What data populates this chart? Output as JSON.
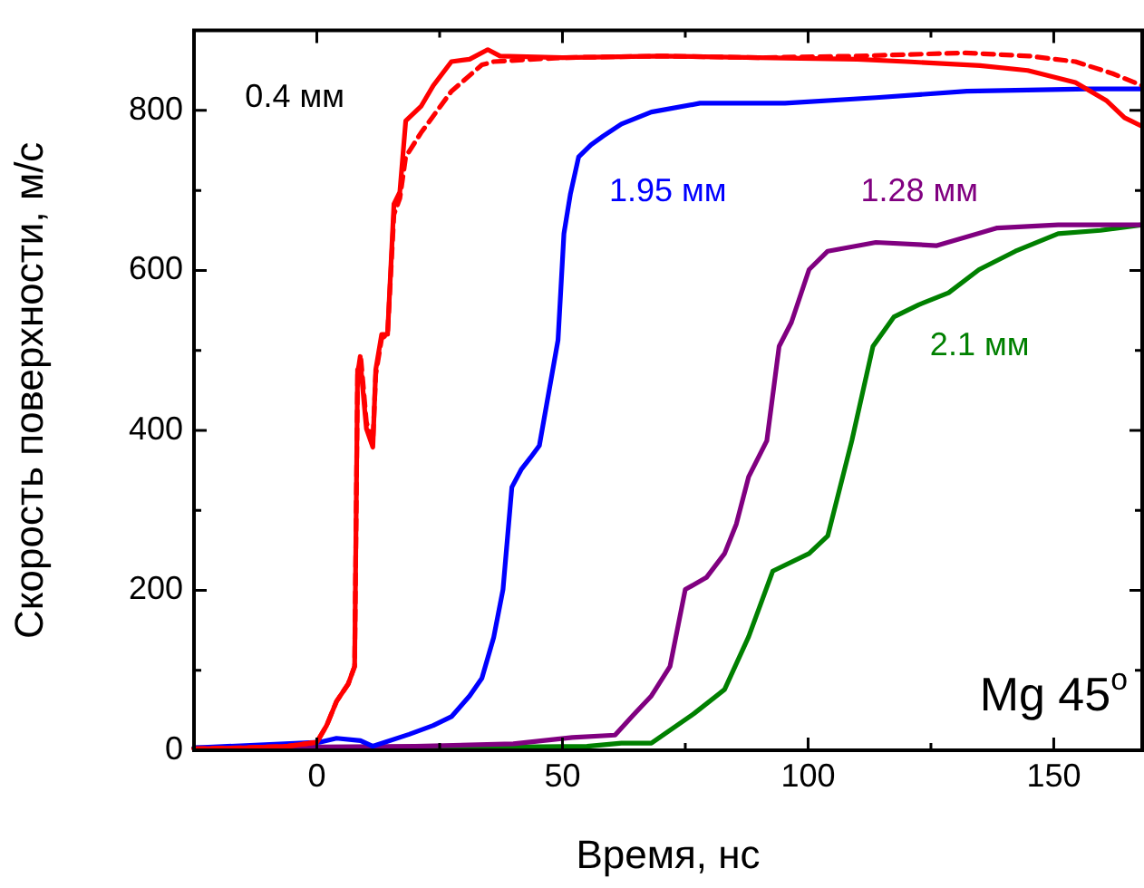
{
  "chart_data": {
    "type": "line",
    "xlabel": "Время, нс",
    "ylabel": "Скорость поверхности, м/с",
    "xlim": [
      -25,
      168
    ],
    "xticks": [
      0,
      50,
      100,
      150
    ],
    "ylim": [
      0,
      900
    ],
    "yticks": [
      0,
      200,
      400,
      600,
      800
    ],
    "grid": false,
    "legend": false,
    "marker": "none",
    "annotations": [
      "Mg 45$^{o}$"
    ],
    "series": [
      {
        "name": "0.4 мм",
        "color": "#ff0000",
        "line_style": "solid",
        "x": [
          -25,
          -15,
          -6,
          0,
          2,
          4,
          6.4,
          7.7,
          8.3,
          8.9,
          10.1,
          11.4,
          12,
          13.2,
          14.4,
          15.7,
          16.9,
          18.1,
          21.2,
          23.7,
          27.4,
          31.1,
          34.8,
          37.3,
          50,
          70,
          90,
          110,
          120,
          135,
          144.7,
          154.4,
          160.8,
          164.4,
          168
        ],
        "values": [
          2,
          3,
          5,
          10,
          31,
          61,
          83,
          105,
          476,
          483,
          402,
          379,
          476,
          520,
          520,
          683,
          698,
          787,
          805,
          831,
          861,
          864,
          876,
          868,
          866,
          868,
          866,
          864,
          861,
          856,
          850,
          835,
          812,
          791,
          780
        ]
      },
      {
        "color": "#ff0000",
        "line_style": "dashed",
        "x": [
          -25,
          -15,
          -6,
          0,
          2,
          4,
          6.4,
          7.7,
          8.3,
          8.9,
          10.1,
          11.4,
          12,
          13.2,
          14.4,
          15.7,
          16.9,
          18.1,
          21.2,
          27.4,
          33.6,
          36,
          50,
          70,
          90,
          110,
          132,
          145,
          154.4,
          162,
          168
        ],
        "values": [
          2,
          3,
          5,
          10,
          31,
          61,
          83,
          105,
          470,
          495,
          410,
          385,
          470,
          515,
          520,
          670,
          690,
          742,
          772,
          824,
          857,
          861,
          866,
          868,
          866,
          868,
          872,
          868,
          861,
          846,
          831
        ]
      },
      {
        "name": "1.95 мм",
        "color": "#0000ff",
        "line_style": "solid",
        "x": [
          -25,
          0.5,
          4,
          8.9,
          11.4,
          18.8,
          23.7,
          27.4,
          31.1,
          33.6,
          36,
          37.9,
          39.7,
          41.6,
          43.5,
          45.3,
          47.2,
          49.1,
          50.3,
          51.6,
          53.3,
          55.8,
          58.3,
          62,
          68.1,
          78,
          95.3,
          113.8,
          132.3,
          157,
          168
        ],
        "values": [
          3,
          10,
          15,
          12,
          5,
          20,
          31,
          42,
          68,
          90,
          141,
          201,
          329,
          351,
          366,
          381,
          447,
          513,
          646,
          695,
          742,
          757,
          768,
          783,
          798,
          809,
          809,
          816,
          824,
          827,
          827
        ]
      },
      {
        "name": "1.28 мм",
        "color": "#800080",
        "line_style": "solid",
        "x": [
          -25,
          0,
          20,
          40,
          52,
          60.7,
          64.4,
          68.1,
          71.9,
          75,
          79.3,
          83,
          85.4,
          87.9,
          91.6,
          94.1,
          96.6,
          100.2,
          104,
          113.8,
          126.2,
          138.5,
          150.9,
          168
        ],
        "values": [
          3,
          4,
          5,
          8,
          16,
          19,
          44,
          68,
          105,
          201,
          216,
          246,
          283,
          342,
          387,
          505,
          535,
          601,
          624,
          635,
          631,
          653,
          657,
          657
        ]
      },
      {
        "name": "2.1 мм",
        "color": "#008000",
        "line_style": "solid",
        "x": [
          -25,
          0,
          40,
          55,
          62,
          68.1,
          76.8,
          83,
          87.9,
          92.8,
          100.2,
          104,
          108.9,
          113.2,
          117.5,
          122.5,
          128.6,
          134.8,
          142.2,
          150.9,
          159.5,
          168
        ],
        "values": [
          3,
          2,
          4,
          5,
          9,
          9,
          46,
          76,
          142,
          224,
          246,
          268,
          387,
          505,
          542,
          557,
          572,
          601,
          624,
          646,
          650,
          657
        ]
      }
    ]
  }
}
